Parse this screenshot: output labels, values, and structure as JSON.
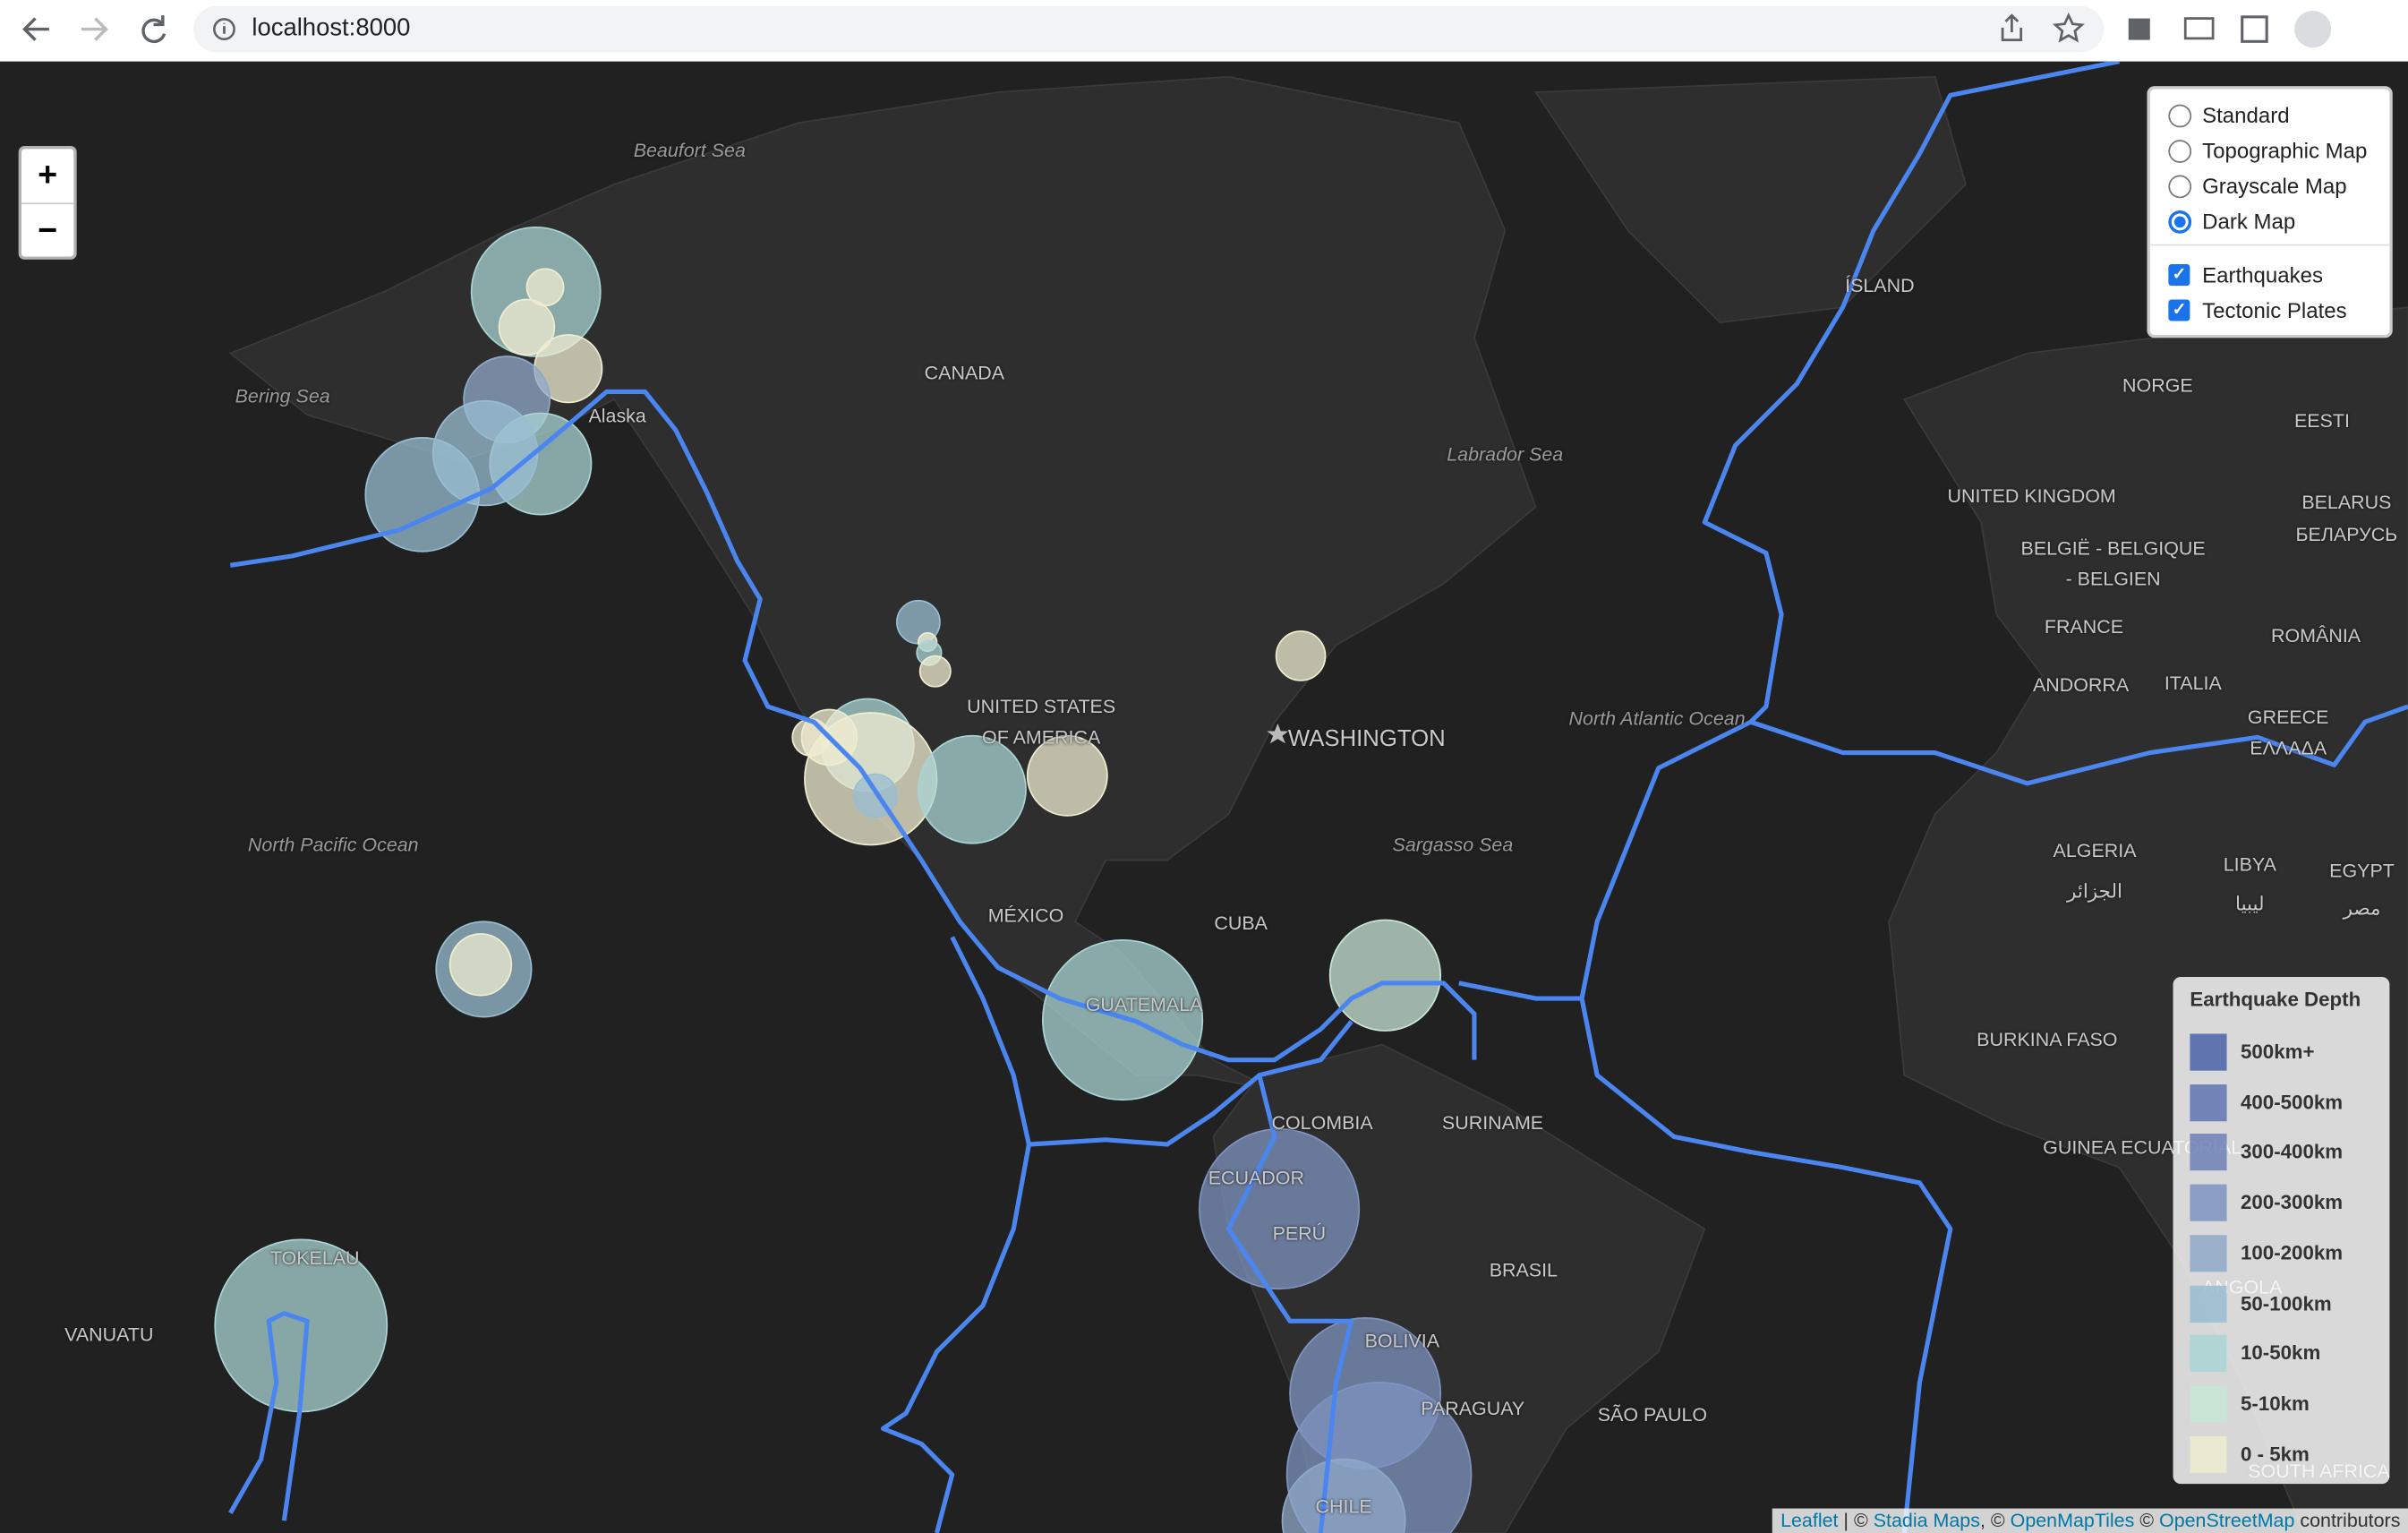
{
  "browser": {
    "url": "localhost:8000"
  },
  "map": {
    "zoom_in": "+",
    "zoom_out": "−",
    "labels": [
      "Beaufort Sea",
      "Bering Sea",
      "Alaska",
      "CANADA",
      "Labrador Sea",
      "ÍSLAND",
      "NORGE",
      "EESTI",
      "UNITED KINGDOM",
      "BELARUS",
      "БЕЛАРУСЬ",
      "BELGIË - BELGIQUE",
      "- BELGIEN",
      "FRANCE",
      "ROMÂNIA",
      "ANDORRA",
      "ITALIA",
      "GREECE",
      "ΕΛΛΑΔΑ",
      "UNITED STATES",
      "OF AMERICA",
      "WASHINGTON",
      "North Atlantic Ocean",
      "North Pacific Ocean",
      "Sargasso Sea",
      "MÉXICO",
      "CUBA",
      "ALGERIA",
      "الجزائر",
      "LIBYA",
      "ليبيا",
      "EGYPT",
      "مصر",
      "BURKINA FASO",
      "GUINEA ECUATORIAL",
      "GUATEMALA",
      "COLOMBIA",
      "SURINAME",
      "ECUADOR",
      "PERÚ",
      "BRASIL",
      "BOLIVIA",
      "PARAGUAY",
      "SÃO PAULO",
      "TOKELAU",
      "VANUATU",
      "ANGOLA",
      "CHILE",
      "SOUTH AFRICA"
    ]
  },
  "layer_control": {
    "base_layers": [
      {
        "label": "Standard",
        "checked": false
      },
      {
        "label": "Topographic Map",
        "checked": false
      },
      {
        "label": "Grayscale Map",
        "checked": false
      },
      {
        "label": "Dark Map",
        "checked": true
      }
    ],
    "overlays": [
      {
        "label": "Earthquakes",
        "checked": true
      },
      {
        "label": "Tectonic Plates",
        "checked": true
      }
    ]
  },
  "legend": {
    "title": "Earthquake Depth",
    "items": [
      {
        "label": "500km+",
        "color": "#4a63a8"
      },
      {
        "label": "400-500km",
        "color": "#5e73b0"
      },
      {
        "label": "300-400km",
        "color": "#6c80b6"
      },
      {
        "label": "200-300km",
        "color": "#7e93bf"
      },
      {
        "label": "100-200km",
        "color": "#8fa8c8"
      },
      {
        "label": "50-100km",
        "color": "#98bdd1"
      },
      {
        "label": "10-50km",
        "color": "#aad4d4"
      },
      {
        "label": "5-10km",
        "color": "#c8e6d6"
      },
      {
        "label": "0 - 5km",
        "color": "#efecd0"
      }
    ]
  },
  "attribution": [
    {
      "text": "Leaflet",
      "link": true
    },
    {
      "text": " | © ",
      "link": false
    },
    {
      "text": "Stadia Maps",
      "link": true
    },
    {
      "text": ", © ",
      "link": false
    },
    {
      "text": "OpenMapTiles",
      "link": true
    },
    {
      "text": " © ",
      "link": false
    },
    {
      "text": "OpenStreetMap",
      "link": true
    },
    {
      "text": " contributors",
      "link": false
    }
  ]
}
